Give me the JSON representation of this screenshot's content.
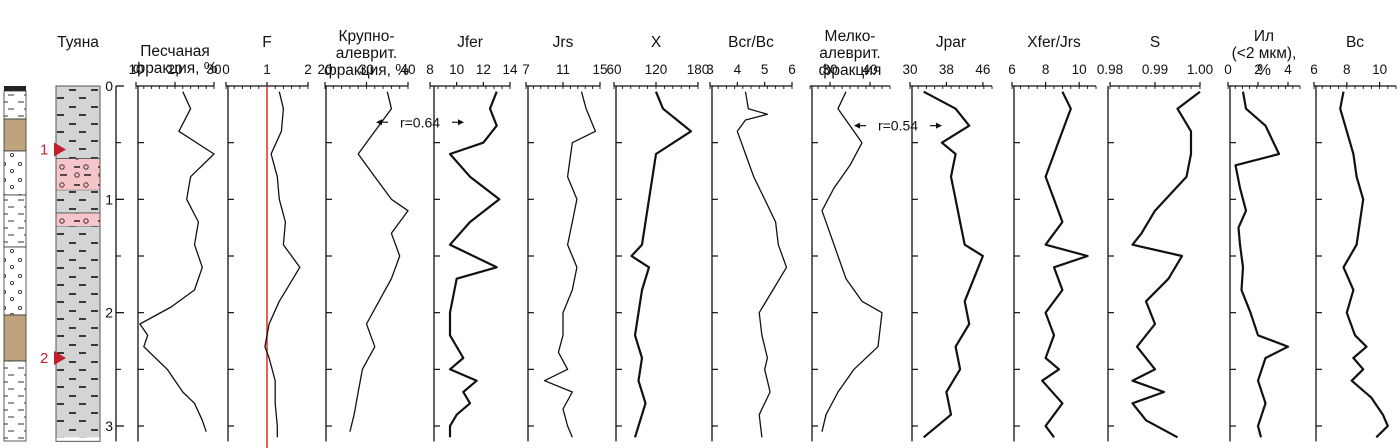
{
  "chart_data": {
    "type": "line",
    "depth_axis": {
      "ticks": [
        "0",
        "1",
        "2",
        "3"
      ],
      "ylim": [
        0,
        3.1
      ]
    },
    "section": {
      "title": "Туяна",
      "units": [
        {
          "from": 0.0,
          "to": 0.64,
          "lith": "silt"
        },
        {
          "from": 0.64,
          "to": 0.92,
          "lith": "pebbly-silt"
        },
        {
          "from": 0.92,
          "to": 1.12,
          "lith": "silt"
        },
        {
          "from": 1.12,
          "to": 1.24,
          "lith": "pebbly-silt"
        },
        {
          "from": 1.24,
          "to": 3.1,
          "lith": "silt"
        }
      ],
      "markers": [
        {
          "label": "1",
          "depth": 0.56
        },
        {
          "label": "2",
          "depth": 2.4
        }
      ]
    },
    "columns": [
      {
        "title": "Песчаная фракция, %",
        "ticks": [
          "10",
          "20",
          "30"
        ],
        "xlim": [
          10,
          30
        ],
        "title_lines": [
          "Песчаная",
          "фракция, %"
        ],
        "points": [
          [
            22,
            0.05
          ],
          [
            24,
            0.2
          ],
          [
            21,
            0.4
          ],
          [
            30,
            0.6
          ],
          [
            24,
            0.8
          ],
          [
            23,
            1.0
          ],
          [
            26,
            1.2
          ],
          [
            25,
            1.4
          ],
          [
            27,
            1.6
          ],
          [
            25,
            1.8
          ],
          [
            19,
            1.95
          ],
          [
            11,
            2.1
          ],
          [
            13,
            2.2
          ],
          [
            12,
            2.3
          ],
          [
            15,
            2.4
          ],
          [
            18,
            2.5
          ],
          [
            22,
            2.7
          ],
          [
            25,
            2.8
          ],
          [
            27,
            2.95
          ],
          [
            28,
            3.05
          ]
        ]
      },
      {
        "title": "F",
        "ticks": [
          "0",
          "1",
          "2"
        ],
        "xlim": [
          0,
          2
        ],
        "title_lines": [
          "F"
        ],
        "ref_line": 1,
        "points": [
          [
            1.3,
            0.05
          ],
          [
            1.4,
            0.2
          ],
          [
            1.35,
            0.4
          ],
          [
            1.1,
            0.6
          ],
          [
            1.25,
            0.8
          ],
          [
            1.3,
            1.0
          ],
          [
            1.45,
            1.2
          ],
          [
            1.4,
            1.4
          ],
          [
            1.8,
            1.6
          ],
          [
            1.55,
            1.75
          ],
          [
            1.3,
            1.9
          ],
          [
            1.05,
            2.1
          ],
          [
            0.95,
            2.3
          ],
          [
            1.05,
            2.4
          ],
          [
            1.2,
            2.6
          ],
          [
            1.2,
            2.8
          ],
          [
            1.25,
            3.0
          ],
          [
            1.25,
            3.1
          ]
        ]
      },
      {
        "title": "Крупно-алеврит. фракция, %",
        "ticks": [
          "20",
          "30",
          "40"
        ],
        "xlim": [
          20,
          40
        ],
        "title_lines": [
          "Крупно-",
          "алеврит.",
          "фракция, %"
        ],
        "points": [
          [
            35,
            0.05
          ],
          [
            36,
            0.2
          ],
          [
            32,
            0.4
          ],
          [
            28,
            0.6
          ],
          [
            32,
            0.8
          ],
          [
            36,
            1.0
          ],
          [
            40,
            1.1
          ],
          [
            36,
            1.3
          ],
          [
            38,
            1.5
          ],
          [
            36,
            1.7
          ],
          [
            33,
            1.9
          ],
          [
            30,
            2.1
          ],
          [
            32,
            2.3
          ],
          [
            29,
            2.5
          ],
          [
            28,
            2.7
          ],
          [
            27,
            2.9
          ],
          [
            26,
            3.05
          ]
        ]
      },
      {
        "title": "Jfer",
        "ticks": [
          "8",
          "10",
          "12",
          "14"
        ],
        "xlim": [
          8,
          14
        ],
        "title_lines": [
          "Jfer"
        ],
        "points": [
          [
            13,
            0.05
          ],
          [
            12.5,
            0.2
          ],
          [
            13,
            0.35
          ],
          [
            12,
            0.5
          ],
          [
            9.5,
            0.6
          ],
          [
            11,
            0.8
          ],
          [
            13.2,
            1.0
          ],
          [
            11,
            1.2
          ],
          [
            9.5,
            1.4
          ],
          [
            13,
            1.6
          ],
          [
            10,
            1.7
          ],
          [
            9.5,
            2.0
          ],
          [
            9.5,
            2.2
          ],
          [
            10.5,
            2.4
          ],
          [
            9.5,
            2.5
          ],
          [
            11.5,
            2.6
          ],
          [
            10.5,
            2.7
          ],
          [
            11,
            2.8
          ],
          [
            10,
            2.9
          ],
          [
            9.5,
            3.0
          ],
          [
            9.5,
            3.1
          ]
        ]
      },
      {
        "title": "Jrs",
        "ticks": [
          "7",
          "11",
          "15"
        ],
        "xlim": [
          7,
          15
        ],
        "title_lines": [
          "Jrs"
        ],
        "points": [
          [
            13,
            0.05
          ],
          [
            13.5,
            0.2
          ],
          [
            14.5,
            0.4
          ],
          [
            12,
            0.5
          ],
          [
            11.5,
            0.8
          ],
          [
            12.5,
            1.0
          ],
          [
            12,
            1.2
          ],
          [
            11.5,
            1.4
          ],
          [
            12.5,
            1.6
          ],
          [
            12,
            1.8
          ],
          [
            11,
            2.0
          ],
          [
            11,
            2.2
          ],
          [
            10.5,
            2.35
          ],
          [
            11.5,
            2.5
          ],
          [
            9,
            2.6
          ],
          [
            12,
            2.7
          ],
          [
            11,
            2.85
          ],
          [
            11.5,
            3.0
          ],
          [
            12,
            3.1
          ]
        ]
      },
      {
        "title": "X",
        "ticks": [
          "60",
          "120",
          "180"
        ],
        "xlim": [
          60,
          180
        ],
        "title_lines": [
          "X"
        ],
        "points": [
          [
            120,
            0.05
          ],
          [
            130,
            0.2
          ],
          [
            150,
            0.3
          ],
          [
            170,
            0.4
          ],
          [
            120,
            0.6
          ],
          [
            115,
            0.8
          ],
          [
            110,
            1.0
          ],
          [
            105,
            1.2
          ],
          [
            100,
            1.4
          ],
          [
            85,
            1.5
          ],
          [
            110,
            1.6
          ],
          [
            100,
            1.8
          ],
          [
            95,
            2.0
          ],
          [
            90,
            2.2
          ],
          [
            100,
            2.4
          ],
          [
            95,
            2.6
          ],
          [
            105,
            2.8
          ],
          [
            95,
            3.0
          ],
          [
            90,
            3.1
          ]
        ]
      },
      {
        "title": "Bcr/Bc",
        "ticks": [
          "3",
          "4",
          "5",
          "6"
        ],
        "xlim": [
          3,
          6
        ],
        "title_lines": [
          "Bcr/Bc"
        ],
        "points": [
          [
            4.3,
            0.05
          ],
          [
            4.4,
            0.2
          ],
          [
            5.1,
            0.25
          ],
          [
            4.3,
            0.3
          ],
          [
            4.0,
            0.4
          ],
          [
            4.3,
            0.6
          ],
          [
            4.6,
            0.8
          ],
          [
            5.0,
            1.0
          ],
          [
            5.4,
            1.2
          ],
          [
            5.5,
            1.4
          ],
          [
            5.8,
            1.6
          ],
          [
            5.3,
            1.8
          ],
          [
            4.8,
            2.0
          ],
          [
            4.9,
            2.2
          ],
          [
            5.1,
            2.4
          ],
          [
            5.0,
            2.5
          ],
          [
            5.2,
            2.7
          ],
          [
            4.8,
            2.9
          ],
          [
            4.9,
            3.1
          ]
        ]
      },
      {
        "title": "Мелко-алеврит. фракция",
        "ticks": [
          "30",
          "40"
        ],
        "xlim": [
          25,
          45
        ],
        "title_lines": [
          "Мелко-",
          "алеврит.",
          "фракция"
        ],
        "points": [
          [
            34,
            0.05
          ],
          [
            32,
            0.2
          ],
          [
            35,
            0.35
          ],
          [
            38,
            0.5
          ],
          [
            35,
            0.7
          ],
          [
            31,
            0.9
          ],
          [
            28,
            1.1
          ],
          [
            30,
            1.3
          ],
          [
            32,
            1.5
          ],
          [
            34,
            1.7
          ],
          [
            38,
            1.9
          ],
          [
            43,
            2.0
          ],
          [
            42,
            2.3
          ],
          [
            36,
            2.5
          ],
          [
            32,
            2.7
          ],
          [
            29,
            2.9
          ],
          [
            28,
            3.05
          ]
        ]
      },
      {
        "title": "Jpar",
        "ticks": [
          "30",
          "38",
          "46"
        ],
        "xlim": [
          30,
          48
        ],
        "title_lines": [
          "Jpar"
        ],
        "points": [
          [
            33,
            0.05
          ],
          [
            40,
            0.2
          ],
          [
            43,
            0.35
          ],
          [
            37,
            0.5
          ],
          [
            40,
            0.6
          ],
          [
            39,
            0.8
          ],
          [
            40,
            1.0
          ],
          [
            41,
            1.2
          ],
          [
            42,
            1.4
          ],
          [
            46,
            1.5
          ],
          [
            44,
            1.7
          ],
          [
            42,
            1.9
          ],
          [
            43,
            2.1
          ],
          [
            40,
            2.3
          ],
          [
            41,
            2.5
          ],
          [
            38,
            2.7
          ],
          [
            39,
            2.9
          ],
          [
            33,
            3.1
          ]
        ]
      },
      {
        "title": "Xfer/Jrs",
        "ticks": [
          "6",
          "8",
          "10"
        ],
        "xlim": [
          6,
          11
        ],
        "title_lines": [
          "Xfer/Jrs"
        ],
        "points": [
          [
            9,
            0.05
          ],
          [
            9.5,
            0.2
          ],
          [
            9,
            0.4
          ],
          [
            8.5,
            0.6
          ],
          [
            8,
            0.8
          ],
          [
            8.5,
            1.0
          ],
          [
            9,
            1.2
          ],
          [
            8,
            1.4
          ],
          [
            10.5,
            1.5
          ],
          [
            8.5,
            1.6
          ],
          [
            9,
            1.8
          ],
          [
            8,
            2.0
          ],
          [
            8.5,
            2.2
          ],
          [
            8,
            2.4
          ],
          [
            8.8,
            2.5
          ],
          [
            7.8,
            2.6
          ],
          [
            9,
            2.8
          ],
          [
            8,
            3.0
          ],
          [
            8.5,
            3.1
          ]
        ]
      },
      {
        "title": "S",
        "ticks": [
          "0.98",
          "0.99",
          "1.00"
        ],
        "xlim": [
          0.98,
          1.0
        ],
        "title_lines": [
          "S"
        ],
        "points": [
          [
            1.0,
            0.05
          ],
          [
            0.995,
            0.2
          ],
          [
            0.998,
            0.4
          ],
          [
            0.998,
            0.6
          ],
          [
            0.997,
            0.8
          ],
          [
            0.99,
            1.1
          ],
          [
            0.987,
            1.3
          ],
          [
            0.985,
            1.4
          ],
          [
            0.996,
            1.5
          ],
          [
            0.993,
            1.7
          ],
          [
            0.988,
            1.9
          ],
          [
            0.99,
            2.1
          ],
          [
            0.986,
            2.3
          ],
          [
            0.99,
            2.5
          ],
          [
            0.985,
            2.6
          ],
          [
            0.992,
            2.7
          ],
          [
            0.985,
            2.8
          ],
          [
            0.988,
            2.95
          ],
          [
            0.995,
            3.1
          ]
        ]
      },
      {
        "title": "Ил (<2 мкм), %",
        "ticks": [
          "0",
          "2",
          "4"
        ],
        "xlim": [
          0,
          4.8
        ],
        "title_lines": [
          "Ил",
          "(<2 мкм),",
          "%"
        ],
        "points": [
          [
            1.0,
            0.05
          ],
          [
            1.2,
            0.2
          ],
          [
            2.5,
            0.35
          ],
          [
            3.4,
            0.6
          ],
          [
            0.5,
            0.7
          ],
          [
            0.8,
            0.9
          ],
          [
            1.2,
            1.1
          ],
          [
            0.7,
            1.25
          ],
          [
            0.8,
            1.4
          ],
          [
            1.0,
            1.6
          ],
          [
            0.9,
            1.8
          ],
          [
            1.5,
            2.0
          ],
          [
            2.0,
            2.2
          ],
          [
            4.0,
            2.3
          ],
          [
            2.5,
            2.4
          ],
          [
            2.0,
            2.6
          ],
          [
            2.5,
            2.8
          ],
          [
            2.0,
            3.0
          ],
          [
            2.2,
            3.1
          ]
        ]
      },
      {
        "title": "Bc",
        "ticks": [
          "6",
          "8",
          "10"
        ],
        "xlim": [
          6,
          11
        ],
        "title_lines": [
          "Bc"
        ],
        "points": [
          [
            7.8,
            0.05
          ],
          [
            7.6,
            0.2
          ],
          [
            8.0,
            0.4
          ],
          [
            8.4,
            0.6
          ],
          [
            8.6,
            0.8
          ],
          [
            9.0,
            1.0
          ],
          [
            8.8,
            1.2
          ],
          [
            8.6,
            1.4
          ],
          [
            7.8,
            1.6
          ],
          [
            8.4,
            1.8
          ],
          [
            8.0,
            2.0
          ],
          [
            8.5,
            2.2
          ],
          [
            9.2,
            2.3
          ],
          [
            8.4,
            2.4
          ],
          [
            9.0,
            2.5
          ],
          [
            8.3,
            2.6
          ],
          [
            9.5,
            2.75
          ],
          [
            10.2,
            2.9
          ],
          [
            10.5,
            3.0
          ],
          [
            9.8,
            3.1
          ]
        ]
      }
    ],
    "annotations": [
      {
        "text": "r=0.64",
        "column": 2,
        "depth": 0.32
      },
      {
        "text": "r=0.54",
        "column": 7,
        "depth": 0.35
      }
    ]
  }
}
